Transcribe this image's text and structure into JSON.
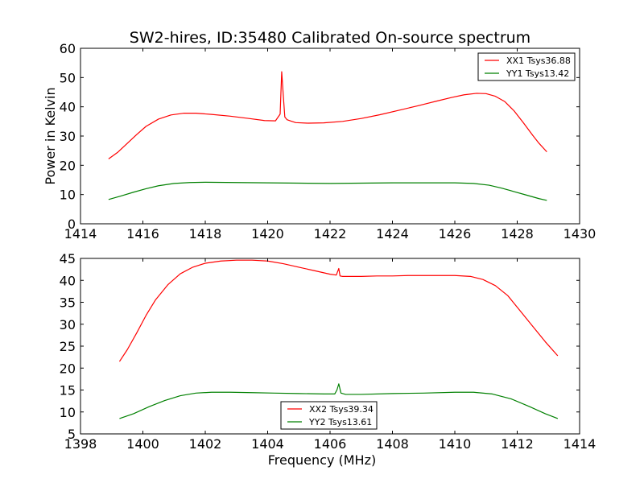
{
  "figure": {
    "title": "SW2-hires, ID:35480 Calibrated On-source spectrum"
  },
  "chart_data": [
    {
      "type": "line",
      "title": "SW2-hires, ID:35480 Calibrated On-source spectrum",
      "xlabel": "",
      "ylabel": "Power in Kelvin",
      "xlim": [
        1414,
        1430
      ],
      "ylim": [
        0,
        60
      ],
      "xticks": [
        1414,
        1416,
        1418,
        1420,
        1422,
        1424,
        1426,
        1428,
        1430
      ],
      "yticks": [
        0,
        10,
        20,
        30,
        40,
        50,
        60
      ],
      "grid": false,
      "legend_position": "upper-right",
      "series": [
        {
          "name": "XX1 Tsys36.88",
          "color": "#ff0000",
          "x": [
            1414.9,
            1415.2,
            1415.5,
            1415.8,
            1416.1,
            1416.5,
            1416.9,
            1417.3,
            1417.7,
            1418.2,
            1418.8,
            1419.4,
            1419.9,
            1420.25,
            1420.4,
            1420.45,
            1420.5,
            1420.55,
            1420.62,
            1420.75,
            1420.9,
            1421.3,
            1421.8,
            1422.4,
            1423.0,
            1423.6,
            1424.2,
            1424.8,
            1425.4,
            1425.9,
            1426.3,
            1426.7,
            1427.0,
            1427.3,
            1427.6,
            1427.9,
            1428.2,
            1428.5,
            1428.7,
            1428.95
          ],
          "y": [
            22.2,
            24.5,
            27.5,
            30.5,
            33.3,
            35.8,
            37.2,
            37.8,
            37.8,
            37.4,
            36.8,
            36.0,
            35.3,
            35.2,
            37.5,
            52.0,
            44.0,
            36.5,
            35.6,
            35.1,
            34.6,
            34.4,
            34.5,
            35.0,
            36.0,
            37.3,
            38.8,
            40.3,
            41.9,
            43.2,
            44.1,
            44.6,
            44.5,
            43.6,
            41.8,
            38.6,
            34.5,
            30.2,
            27.5,
            24.6
          ]
        },
        {
          "name": "YY1 Tsys13.42",
          "color": "#008000",
          "x": [
            1414.9,
            1415.3,
            1415.7,
            1416.1,
            1416.5,
            1417.0,
            1417.5,
            1418.0,
            1419.0,
            1420.0,
            1421.0,
            1422.0,
            1423.0,
            1424.0,
            1425.0,
            1426.0,
            1426.6,
            1427.1,
            1427.5,
            1427.9,
            1428.3,
            1428.7,
            1428.95
          ],
          "y": [
            8.3,
            9.5,
            10.8,
            12.0,
            13.0,
            13.8,
            14.1,
            14.2,
            14.1,
            14.0,
            13.9,
            13.8,
            13.9,
            14.0,
            14.0,
            14.0,
            13.8,
            13.2,
            12.2,
            11.0,
            9.8,
            8.6,
            8.0
          ]
        }
      ]
    },
    {
      "type": "line",
      "title": "",
      "xlabel": "Frequency (MHz)",
      "ylabel": "",
      "xlim": [
        1398,
        1414
      ],
      "ylim": [
        5,
        45
      ],
      "xticks": [
        1398,
        1400,
        1402,
        1404,
        1406,
        1408,
        1410,
        1412,
        1414
      ],
      "yticks": [
        5,
        10,
        15,
        20,
        25,
        30,
        35,
        40,
        45
      ],
      "grid": false,
      "legend_position": "lower-center",
      "series": [
        {
          "name": "XX2 Tsys39.34",
          "color": "#ff0000",
          "x": [
            1399.25,
            1399.5,
            1399.8,
            1400.1,
            1400.4,
            1400.8,
            1401.2,
            1401.6,
            1402.0,
            1402.5,
            1403.0,
            1403.5,
            1404.0,
            1404.5,
            1405.0,
            1405.5,
            1406.0,
            1406.2,
            1406.28,
            1406.32,
            1406.4,
            1406.6,
            1407.0,
            1407.5,
            1408.0,
            1408.5,
            1409.0,
            1409.5,
            1410.0,
            1410.5,
            1410.9,
            1411.3,
            1411.7,
            1412.1,
            1412.5,
            1412.9,
            1413.3
          ],
          "y": [
            21.5,
            24.2,
            28.0,
            32.0,
            35.5,
            39.0,
            41.5,
            43.0,
            43.9,
            44.4,
            44.6,
            44.6,
            44.4,
            43.8,
            43.0,
            42.2,
            41.4,
            41.2,
            42.7,
            41.0,
            40.9,
            40.9,
            40.9,
            41.0,
            41.0,
            41.1,
            41.1,
            41.1,
            41.1,
            40.9,
            40.2,
            38.8,
            36.5,
            33.0,
            29.5,
            26.0,
            22.8
          ]
        },
        {
          "name": "YY2 Tsys13.61",
          "color": "#008000",
          "x": [
            1399.25,
            1399.7,
            1400.2,
            1400.7,
            1401.2,
            1401.7,
            1402.2,
            1402.8,
            1403.5,
            1404.2,
            1405.0,
            1405.8,
            1406.15,
            1406.22,
            1406.28,
            1406.35,
            1406.5,
            1407.0,
            1408.0,
            1409.0,
            1410.0,
            1410.6,
            1411.2,
            1411.8,
            1412.4,
            1412.9,
            1413.3
          ],
          "y": [
            8.5,
            9.6,
            11.2,
            12.6,
            13.7,
            14.3,
            14.5,
            14.5,
            14.4,
            14.3,
            14.2,
            14.1,
            14.1,
            15.0,
            16.4,
            14.3,
            14.0,
            14.0,
            14.2,
            14.3,
            14.5,
            14.5,
            14.1,
            13.0,
            11.2,
            9.6,
            8.5
          ]
        }
      ]
    }
  ]
}
